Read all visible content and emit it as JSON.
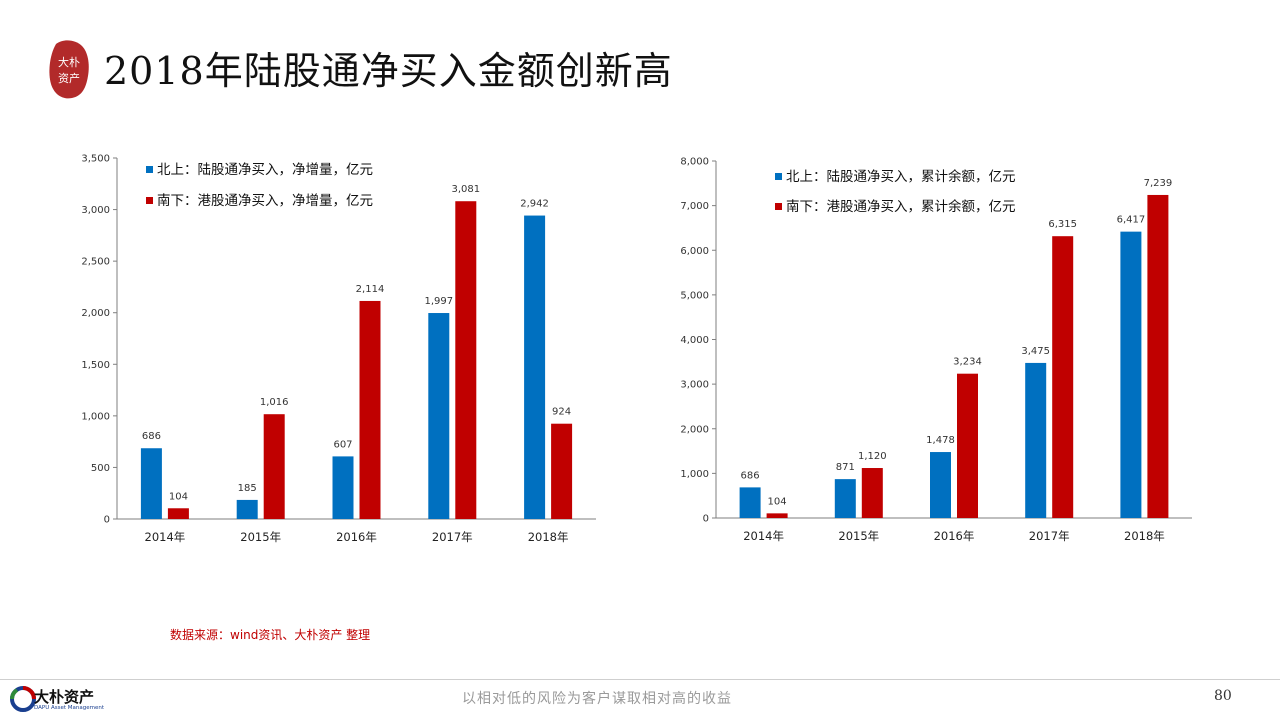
{
  "header": {
    "title": "2018年陆股通净买入金额创新高",
    "seal_text": "大朴资产"
  },
  "chart_data": [
    {
      "type": "bar",
      "categories": [
        "2014年",
        "2015年",
        "2016年",
        "2017年",
        "2018年"
      ],
      "series": [
        {
          "name": "北上：陆股通净买入，净增量，亿元",
          "color": "#0070c0",
          "values": [
            686,
            185,
            607,
            1997,
            2942
          ],
          "labels": [
            "686",
            "185",
            "607",
            "1,997",
            "2,942"
          ]
        },
        {
          "name": "南下：港股通净买入，净增量，亿元",
          "color": "#c00000",
          "values": [
            104,
            1016,
            2114,
            3081,
            924
          ],
          "labels": [
            "104",
            "1,016",
            "2,114",
            "3,081",
            "924"
          ]
        }
      ],
      "ylim": [
        0,
        3500
      ],
      "yticks": [
        0,
        500,
        1000,
        1500,
        2000,
        2500,
        3000,
        3500
      ],
      "ytick_labels": [
        "0",
        "500",
        "1,000",
        "1,500",
        "2,000",
        "2,500",
        "3,000",
        "3,500"
      ],
      "grid": false,
      "legend_position": "top-left"
    },
    {
      "type": "bar",
      "categories": [
        "2014年",
        "2015年",
        "2016年",
        "2017年",
        "2018年"
      ],
      "series": [
        {
          "name": "北上：陆股通净买入，累计余额，亿元",
          "color": "#0070c0",
          "values": [
            686,
            871,
            1478,
            3475,
            6417
          ],
          "labels": [
            "686",
            "871",
            "1,478",
            "3,475",
            "6,417"
          ]
        },
        {
          "name": "南下：港股通净买入，累计余额，亿元",
          "color": "#c00000",
          "values": [
            104,
            1120,
            3234,
            6315,
            7239
          ],
          "labels": [
            "104",
            "1,120",
            "3,234",
            "6,315",
            "7,239"
          ]
        }
      ],
      "ylim": [
        0,
        8000
      ],
      "yticks": [
        0,
        1000,
        2000,
        3000,
        4000,
        5000,
        6000,
        7000,
        8000
      ],
      "ytick_labels": [
        "0",
        "1,000",
        "2,000",
        "3,000",
        "4,000",
        "5,000",
        "6,000",
        "7,000",
        "8,000"
      ],
      "grid": false,
      "legend_position": "top-left"
    }
  ],
  "source_note": "数据来源：wind资讯、大朴资产 整理",
  "footer": {
    "company_name": "大朴资产",
    "company_name_en": "DAPU Asset Management",
    "slogan": "以相对低的风险为客户谋取相对高的收益",
    "page_number": "80"
  }
}
